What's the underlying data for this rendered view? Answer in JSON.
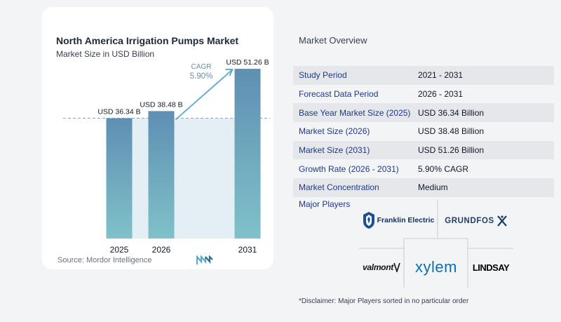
{
  "chart_data": {
    "type": "bar",
    "title": "North America Irrigation Pumps Market",
    "subtitle": "Market Size in USD Billion",
    "categories": [
      "2025",
      "2026",
      "2031"
    ],
    "values": [
      36.34,
      38.48,
      51.26
    ],
    "data_labels": [
      "USD 36.34 B",
      "USD 38.48 B",
      "USD 51.26 B"
    ],
    "cagr_label": "CAGR",
    "cagr_value": "5.90%",
    "colors": {
      "bar_top": "#5f8fb3",
      "bar_bottom": "#7fc1c9",
      "band": "#e3eef5",
      "arrow": "#5ea7c6",
      "cagr_text": "#6b8fb0"
    }
  },
  "source": "Source:  Mordor Intelligence",
  "overview": {
    "title": "Market Overview",
    "rows": [
      {
        "label": "Study Period",
        "value": "2021 - 2031"
      },
      {
        "label": "Forecast Data Period",
        "value": "2026 - 2031"
      },
      {
        "label": "Base Year Market Size (2025)",
        "value": "USD 36.34 Billion"
      },
      {
        "label": "Market Size (2026)",
        "value": "USD 38.48 Billion"
      },
      {
        "label": "Market Size (2031)",
        "value": "USD 51.26 Billion"
      },
      {
        "label": "Growth Rate (2026 - 2031)",
        "value": "5.90% CAGR"
      },
      {
        "label": "Market Concentration",
        "value": "Medium"
      }
    ],
    "players_title": "Major Players",
    "players": [
      "Franklin Electric",
      "GRUNDFOS",
      "valmont",
      "xylem",
      "LINDSAY"
    ],
    "disclaimer": "*Disclaimer: Major Players sorted in no particular order"
  }
}
